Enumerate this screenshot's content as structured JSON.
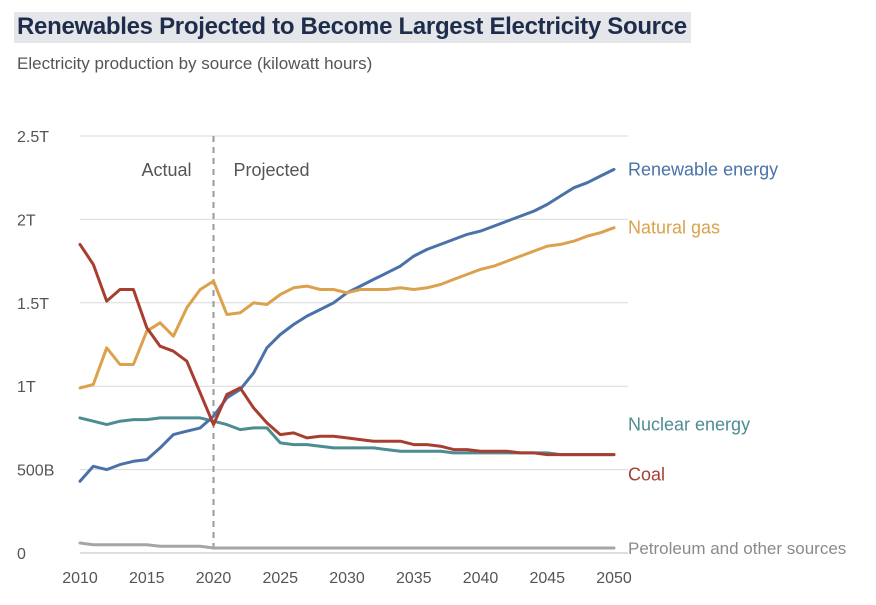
{
  "title": "Renewables Projected to Become Largest Electricity Source",
  "subtitle": "Electricity production by source (kilowatt hours)",
  "chart_data": {
    "type": "line",
    "x": [
      2010,
      2011,
      2012,
      2013,
      2014,
      2015,
      2016,
      2017,
      2018,
      2019,
      2020,
      2021,
      2022,
      2023,
      2024,
      2025,
      2026,
      2027,
      2028,
      2029,
      2030,
      2031,
      2032,
      2033,
      2034,
      2035,
      2036,
      2037,
      2038,
      2039,
      2040,
      2041,
      2042,
      2043,
      2044,
      2045,
      2046,
      2047,
      2048,
      2049,
      2050
    ],
    "xticks": [
      2010,
      2015,
      2020,
      2025,
      2030,
      2035,
      2040,
      2045,
      2050
    ],
    "ylim": [
      0,
      2.5
    ],
    "yticks": [
      0,
      0.5,
      1,
      1.5,
      2,
      2.5
    ],
    "ytick_labels": [
      "0",
      "500B",
      "1T",
      "1.5T",
      "2T",
      "2.5T"
    ],
    "divider_x": 2020,
    "annotations": {
      "actual": "Actual",
      "projected": "Projected"
    },
    "grid": true,
    "series": [
      {
        "name": "Renewable energy",
        "color": "#4a72a8",
        "values": [
          0.43,
          0.52,
          0.5,
          0.53,
          0.55,
          0.56,
          0.63,
          0.71,
          0.73,
          0.75,
          0.82,
          0.93,
          0.98,
          1.08,
          1.23,
          1.31,
          1.37,
          1.42,
          1.46,
          1.5,
          1.56,
          1.6,
          1.64,
          1.68,
          1.72,
          1.78,
          1.82,
          1.85,
          1.88,
          1.91,
          1.93,
          1.96,
          1.99,
          2.02,
          2.05,
          2.09,
          2.14,
          2.19,
          2.22,
          2.26,
          2.3
        ]
      },
      {
        "name": "Natural gas",
        "color": "#dba14c",
        "values": [
          0.99,
          1.01,
          1.23,
          1.13,
          1.13,
          1.33,
          1.38,
          1.3,
          1.47,
          1.58,
          1.63,
          1.43,
          1.44,
          1.5,
          1.49,
          1.55,
          1.59,
          1.6,
          1.58,
          1.58,
          1.56,
          1.58,
          1.58,
          1.58,
          1.59,
          1.58,
          1.59,
          1.61,
          1.64,
          1.67,
          1.7,
          1.72,
          1.75,
          1.78,
          1.81,
          1.84,
          1.85,
          1.87,
          1.9,
          1.92,
          1.95
        ]
      },
      {
        "name": "Nuclear energy",
        "color": "#4d8c92",
        "values": [
          0.81,
          0.79,
          0.77,
          0.79,
          0.8,
          0.8,
          0.81,
          0.81,
          0.81,
          0.81,
          0.79,
          0.77,
          0.74,
          0.75,
          0.75,
          0.66,
          0.65,
          0.65,
          0.64,
          0.63,
          0.63,
          0.63,
          0.63,
          0.62,
          0.61,
          0.61,
          0.61,
          0.61,
          0.6,
          0.6,
          0.6,
          0.6,
          0.6,
          0.6,
          0.6,
          0.6,
          0.59,
          0.59,
          0.59,
          0.59,
          0.59
        ]
      },
      {
        "name": "Coal",
        "color": "#a83e30",
        "values": [
          1.85,
          1.73,
          1.51,
          1.58,
          1.58,
          1.35,
          1.24,
          1.21,
          1.15,
          0.96,
          0.77,
          0.95,
          0.99,
          0.87,
          0.78,
          0.71,
          0.72,
          0.69,
          0.7,
          0.7,
          0.69,
          0.68,
          0.67,
          0.67,
          0.67,
          0.65,
          0.65,
          0.64,
          0.62,
          0.62,
          0.61,
          0.61,
          0.61,
          0.6,
          0.6,
          0.59,
          0.59,
          0.59,
          0.59,
          0.59,
          0.59
        ]
      },
      {
        "name": "Petroleum and other sources",
        "color": "#a5a5a5",
        "values": [
          0.06,
          0.05,
          0.05,
          0.05,
          0.05,
          0.05,
          0.04,
          0.04,
          0.04,
          0.04,
          0.03,
          0.03,
          0.03,
          0.03,
          0.03,
          0.03,
          0.03,
          0.03,
          0.03,
          0.03,
          0.03,
          0.03,
          0.03,
          0.03,
          0.03,
          0.03,
          0.03,
          0.03,
          0.03,
          0.03,
          0.03,
          0.03,
          0.03,
          0.03,
          0.03,
          0.03,
          0.03,
          0.03,
          0.03,
          0.03,
          0.03
        ]
      }
    ]
  }
}
